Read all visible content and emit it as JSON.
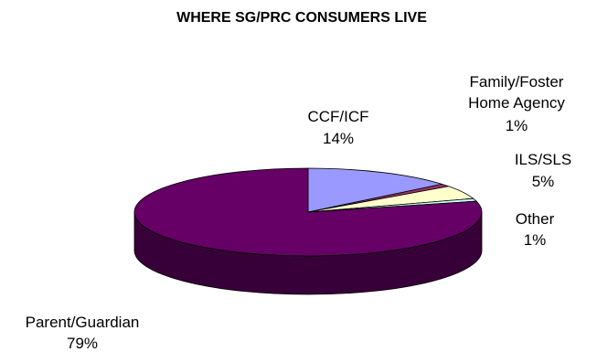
{
  "chart_data": {
    "type": "pie",
    "title": "WHERE SG/PRC CONSUMERS LIVE",
    "slices": [
      {
        "name": "CCF/ICF",
        "value": 14,
        "label": "14%",
        "color": "#9999FF"
      },
      {
        "name": "Family/Foster Home Agency",
        "value": 1,
        "label": "1%",
        "color": "#993366"
      },
      {
        "name": "ILS/SLS",
        "value": 5,
        "label": "5%",
        "color": "#FFFFCC"
      },
      {
        "name": "Other",
        "value": 1,
        "label": "1%",
        "color": "#CCFFFF"
      },
      {
        "name": "Parent/Guardian",
        "value": 79,
        "label": "79%",
        "color": "#660066"
      }
    ],
    "legend": "none"
  }
}
